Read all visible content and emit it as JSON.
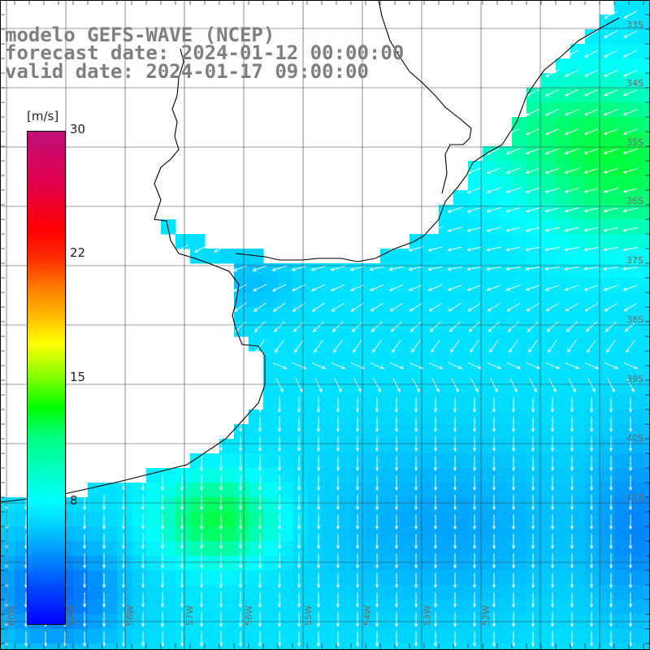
{
  "title": {
    "line1": "modelo GEFS-WAVE (NCEP)",
    "line2": "forecast date: 2024-01-12 00:00:00",
    "line3": "valid date: 2024-01-17 09:00:00"
  },
  "colorbar": {
    "unit": "[m/s]",
    "ticks": [
      "30",
      "22",
      "15",
      "8"
    ],
    "tick_values": [
      30,
      22,
      15,
      8
    ],
    "range": [
      0,
      30
    ]
  },
  "map": {
    "lat_labels": [
      "33S",
      "34S",
      "35S",
      "36S",
      "37S",
      "38S",
      "39S",
      "40S",
      "41S"
    ],
    "lat_values": [
      33,
      34,
      35,
      36,
      37,
      38,
      39,
      40,
      41
    ],
    "lon_labels": [
      "60W",
      "59W",
      "58W",
      "57W",
      "56W",
      "55W",
      "54W",
      "53W",
      "52W"
    ],
    "lon_values": [
      60,
      59,
      58,
      57,
      56,
      55,
      54,
      53,
      52
    ],
    "colors": {
      "land": "#ffffff",
      "coast": "#000000",
      "grid": "#404040",
      "label": "#6a6a6a",
      "arrow": "#ffffff"
    }
  }
}
